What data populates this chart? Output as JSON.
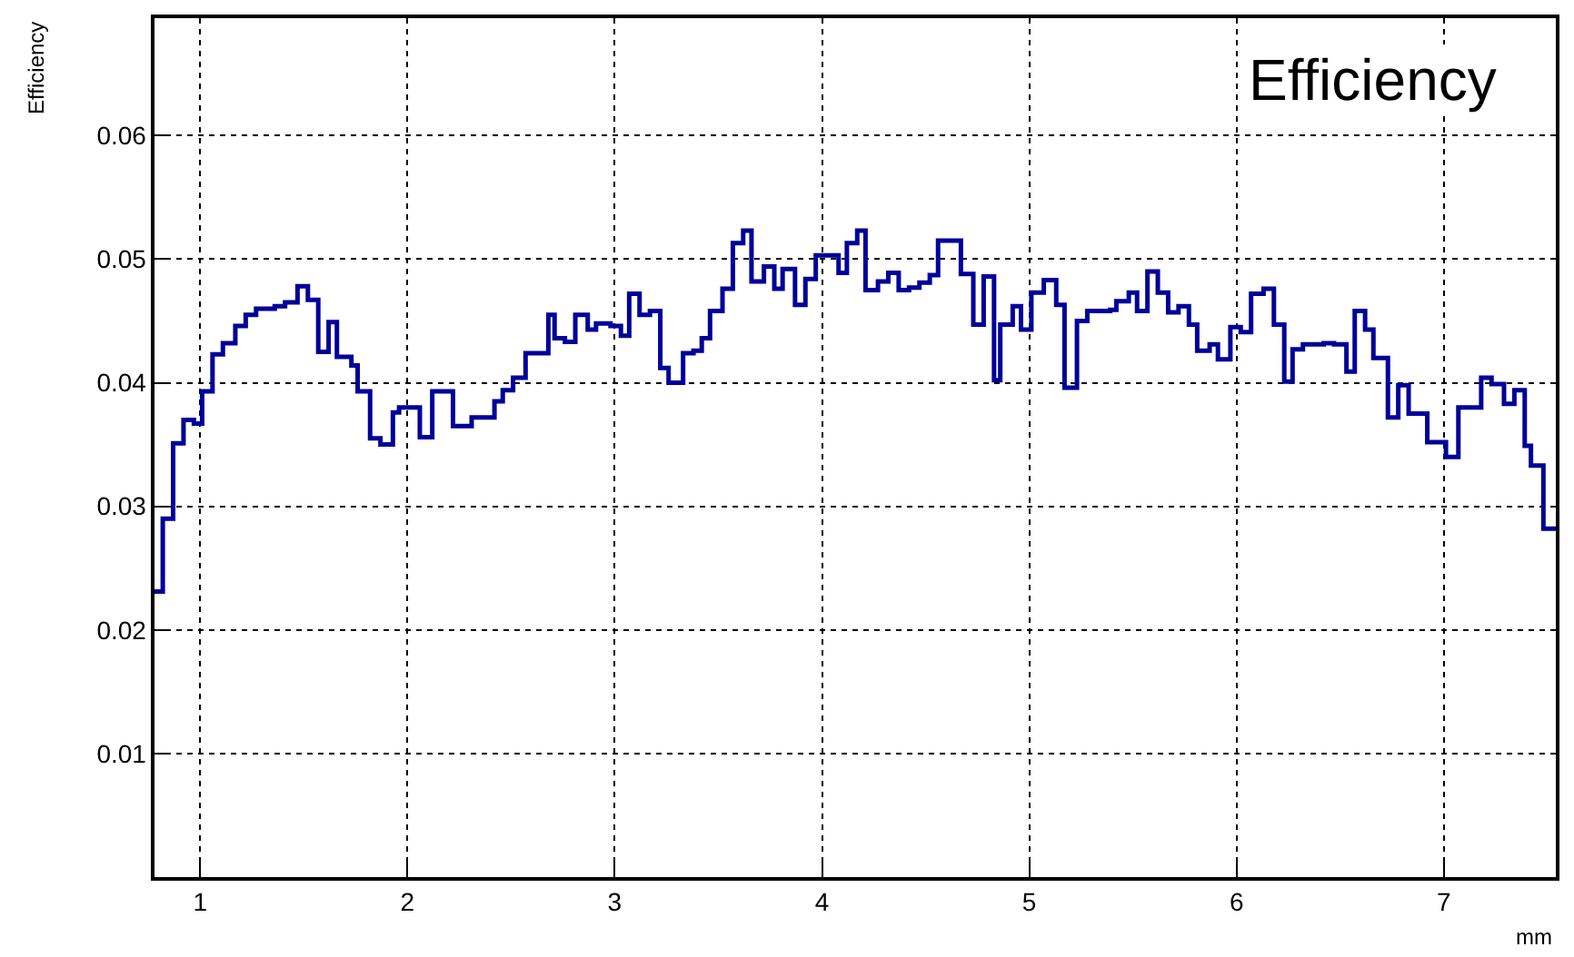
{
  "chart_data": {
    "type": "histogram",
    "title": "Efficiency",
    "xlabel": "mm",
    "ylabel": "Efficiency",
    "bins": [
      0.78,
      0.82,
      0.87,
      0.92,
      0.97,
      1.01,
      1.06,
      1.11,
      1.17,
      1.22,
      1.27,
      1.36,
      1.41,
      1.47,
      1.52,
      1.57,
      1.62,
      1.66,
      1.73,
      1.76,
      1.82,
      1.87,
      1.93,
      1.96,
      2.06,
      2.12,
      2.22,
      2.31,
      2.42,
      2.46,
      2.51,
      2.57,
      2.68,
      2.71,
      2.76,
      2.81,
      2.87,
      2.91,
      2.98,
      3.03,
      3.07,
      3.12,
      3.17,
      3.22,
      3.26,
      3.33,
      3.38,
      3.42,
      3.46,
      3.52,
      3.57,
      3.62,
      3.66,
      3.72,
      3.77,
      3.81,
      3.87,
      3.92,
      3.97,
      4.08,
      4.12,
      4.17,
      4.21,
      4.27,
      4.32,
      4.37,
      4.42,
      4.47,
      4.52,
      4.56,
      4.67,
      4.73,
      4.78,
      4.83,
      4.86,
      4.92,
      4.96,
      5.01,
      5.07,
      5.13,
      5.17,
      5.23,
      5.28,
      5.39,
      5.42,
      5.48,
      5.52,
      5.57,
      5.62,
      5.67,
      5.72,
      5.77,
      5.81,
      5.87,
      5.91,
      5.97,
      6.02,
      6.07,
      6.13,
      6.18,
      6.23,
      6.27,
      6.32,
      6.42,
      6.47,
      6.53,
      6.57,
      6.62,
      6.66,
      6.73,
      6.78,
      6.83,
      6.92,
      7.01,
      7.07,
      7.18,
      7.23,
      7.29,
      7.34,
      7.39,
      7.42,
      7.48,
      7.54
    ],
    "values": [
      0.0231,
      0.029,
      0.0351,
      0.037,
      0.0367,
      0.0393,
      0.0423,
      0.0432,
      0.0446,
      0.0455,
      0.046,
      0.0462,
      0.0465,
      0.0478,
      0.0467,
      0.0425,
      0.0449,
      0.0421,
      0.0414,
      0.0393,
      0.0355,
      0.035,
      0.0376,
      0.038,
      0.0356,
      0.0393,
      0.0365,
      0.0372,
      0.0385,
      0.0394,
      0.0404,
      0.0424,
      0.0455,
      0.0436,
      0.0433,
      0.0455,
      0.0443,
      0.0448,
      0.0446,
      0.0438,
      0.0472,
      0.0455,
      0.0458,
      0.0412,
      0.04,
      0.0424,
      0.0426,
      0.0436,
      0.0458,
      0.0476,
      0.0513,
      0.0523,
      0.0482,
      0.0494,
      0.0476,
      0.0492,
      0.0463,
      0.0484,
      0.0503,
      0.0489,
      0.0513,
      0.0523,
      0.0475,
      0.0482,
      0.0489,
      0.0475,
      0.0477,
      0.0481,
      0.0487,
      0.0515,
      0.0488,
      0.0447,
      0.0486,
      0.0402,
      0.0447,
      0.0462,
      0.0443,
      0.0473,
      0.0483,
      0.0463,
      0.0396,
      0.045,
      0.0458,
      0.0459,
      0.0466,
      0.0473,
      0.0458,
      0.049,
      0.0473,
      0.0457,
      0.0462,
      0.0447,
      0.0426,
      0.0431,
      0.0419,
      0.0445,
      0.0441,
      0.0472,
      0.0476,
      0.0447,
      0.0401,
      0.0427,
      0.0431,
      0.0432,
      0.0431,
      0.0409,
      0.0458,
      0.0443,
      0.042,
      0.0372,
      0.0398,
      0.0375,
      0.0352,
      0.034,
      0.038,
      0.0404,
      0.0399,
      0.0383,
      0.0394,
      0.0349,
      0.0333,
      0.0282
    ],
    "color": "#000099",
    "xlim": [
      0.78,
      7.54
    ],
    "xticks": [
      1,
      2,
      3,
      4,
      5,
      6,
      7
    ],
    "ylim": [
      0,
      0.0695
    ],
    "yticks": [
      0.01,
      0.02,
      0.03,
      0.04,
      0.05,
      0.06
    ],
    "grid": true
  }
}
